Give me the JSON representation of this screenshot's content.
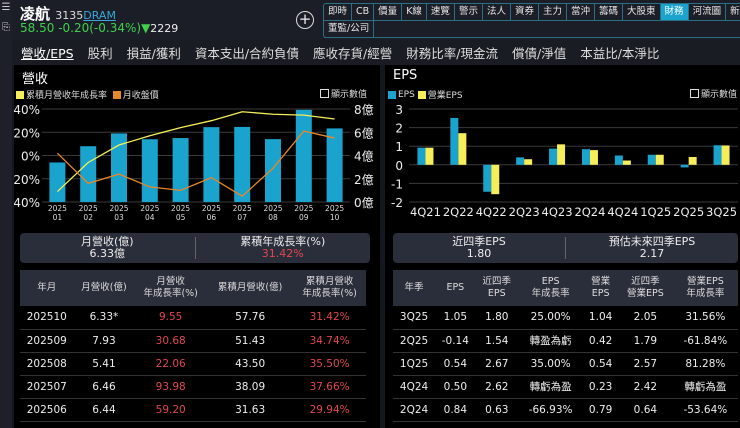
{
  "header": {
    "name": "凌航",
    "code": "3135",
    "industry": "DRAM",
    "price": "58.50",
    "change": "-0.20(-0.34%)",
    "volume": "2229",
    "down_arrow": "▼"
  },
  "toolbar": {
    "row1": [
      "即時",
      "CB",
      "價量",
      "K線",
      "速覽",
      "警示",
      "法人",
      "資券",
      "主力",
      "當沖",
      "籌碼",
      "大股東",
      "財務",
      "河流圖",
      "新聞/日曆"
    ],
    "row2": [
      "董監/公司"
    ],
    "active": "財務"
  },
  "tabs": [
    "營收/EPS",
    "股利",
    "損益/獲利",
    "資本支出/合約負債",
    "應收存貨/經營",
    "財務比率/現金流",
    "償債/淨值",
    "本益比/本淨比"
  ],
  "revenue": {
    "title": "營收",
    "legend": [
      "累積月營收年成長率",
      "月收盤價"
    ],
    "show_values": "顯示數值",
    "summary": {
      "label1": "月營收(億)",
      "value1": "6.33億",
      "label2": "累積年成長率(%)",
      "value2": "31.42%"
    },
    "columns": [
      "年月",
      "月營收(億)",
      "月營收\n年成長率(%)",
      "累積月營收(億)",
      "累積月營收\n年成長率(%)"
    ],
    "rows": [
      [
        "202510",
        "6.33*",
        "9.55",
        "57.76",
        "31.42%"
      ],
      [
        "202509",
        "7.93",
        "30.68",
        "51.43",
        "34.74%"
      ],
      [
        "202508",
        "5.41",
        "22.06",
        "43.50",
        "35.50%"
      ],
      [
        "202507",
        "6.46",
        "93.98",
        "38.09",
        "37.66%"
      ],
      [
        "202506",
        "6.44",
        "59.20",
        "31.63",
        "29.94%"
      ]
    ]
  },
  "eps": {
    "title": "EPS",
    "legend": [
      "EPS",
      "營業EPS"
    ],
    "show_values": "顯示數值",
    "summary": {
      "label1": "近四季EPS",
      "value1": "1.80",
      "label2": "預估未來四季EPS",
      "value2": "2.17"
    },
    "columns": [
      "年季",
      "EPS",
      "近四季\nEPS",
      "EPS\n年成長率",
      "營業\nEPS",
      "近四季\n營業EPS",
      "營業EPS\n年成長率"
    ],
    "rows": [
      [
        "3Q25",
        "1.05",
        "1.80",
        "25.00%",
        "1.04",
        "2.05",
        "31.56%"
      ],
      [
        "2Q25",
        "-0.14",
        "1.54",
        "轉盈為虧",
        "0.42",
        "1.79",
        "-61.84%"
      ],
      [
        "1Q25",
        "0.54",
        "2.67",
        "35.00%",
        "0.54",
        "2.57",
        "81.28%"
      ],
      [
        "4Q24",
        "0.50",
        "2.62",
        "轉虧為盈",
        "0.23",
        "2.42",
        "轉虧為盈"
      ],
      [
        "2Q24",
        "0.84",
        "0.63",
        "-66.93%",
        "0.79",
        "0.64",
        "-53.64%"
      ]
    ]
  },
  "colors": {
    "bar": "#1aa3cc",
    "yellow": "#f5ee5a",
    "orange": "#e8862a",
    "red": "#e0474f",
    "green": "#3fcf4a"
  },
  "chart_data": [
    {
      "type": "bar",
      "title": "營收",
      "categories": [
        "2025\n01",
        "2025\n02",
        "2025\n03",
        "2025\n04",
        "2025\n05",
        "2025\n06",
        "2025\n07",
        "2025\n08",
        "2025\n09",
        "2025\n10"
      ],
      "bar_series": {
        "axis": "right",
        "values": [
          3.4,
          4.8,
          5.9,
          5.4,
          5.5,
          6.44,
          6.46,
          5.41,
          7.93,
          6.33
        ]
      },
      "series": [
        {
          "name": "累積月營收年成長率",
          "axis": "left",
          "values": [
            -31,
            -6,
            9,
            17,
            24,
            29.94,
            37.66,
            35.5,
            34.74,
            31.42
          ]
        },
        {
          "name": "月收盤價",
          "axis": "hidden",
          "values": [
            2,
            -24,
            -16,
            -27,
            -30,
            -19,
            -35,
            -11,
            21,
            15
          ]
        }
      ],
      "left_ticks": [
        "40%",
        "20%",
        "0%",
        "-20%",
        "-40%"
      ],
      "ylim_left": [
        -40,
        40
      ],
      "right_ticks": [
        "8億",
        "6億",
        "4億",
        "2億",
        "0億"
      ],
      "ylim_right": [
        0,
        8
      ],
      "grid": true,
      "legend": "top-left"
    },
    {
      "type": "bar",
      "title": "EPS",
      "categories": [
        "4Q21",
        "2Q22",
        "4Q22",
        "2Q23",
        "4Q23",
        "2Q24",
        "4Q24",
        "1Q25",
        "2Q25",
        "3Q25"
      ],
      "series": [
        {
          "name": "EPS",
          "values": [
            0.92,
            2.52,
            -1.45,
            0.4,
            0.87,
            0.84,
            0.5,
            0.54,
            -0.14,
            1.05
          ]
        },
        {
          "name": "營業EPS",
          "values": [
            0.92,
            1.7,
            -1.58,
            0.3,
            1.1,
            0.79,
            0.23,
            0.54,
            0.42,
            1.04
          ]
        }
      ],
      "y_ticks": [
        "3",
        "2",
        "1",
        "0",
        "-1",
        "-2"
      ],
      "ylim": [
        -2,
        3
      ],
      "grid": true,
      "legend": "top-left"
    }
  ]
}
